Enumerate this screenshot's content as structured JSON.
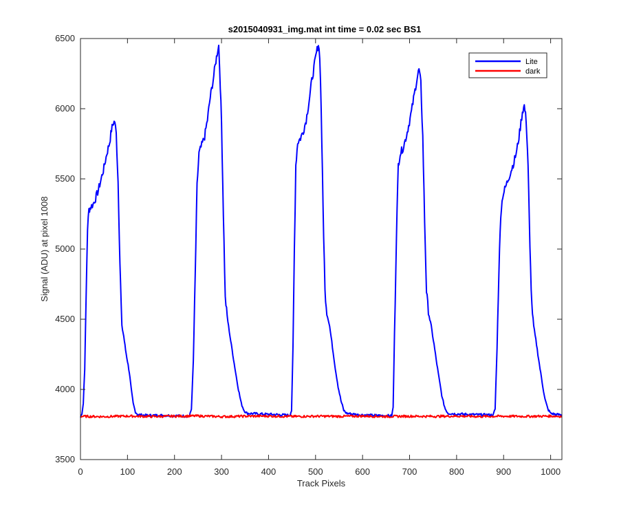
{
  "chart_data": {
    "type": "line",
    "title": "s2015040931_img.mat int time = 0.02 sec   BS1",
    "xlabel": "Track Pixels",
    "ylabel": "Signal (ADU) at pixel 1008",
    "xlim": [
      0,
      1024
    ],
    "ylim": [
      3500,
      6500
    ],
    "xticks": [
      0,
      100,
      200,
      300,
      400,
      500,
      600,
      700,
      800,
      900,
      1000
    ],
    "yticks": [
      3500,
      4000,
      4500,
      5000,
      5500,
      6000,
      6500
    ],
    "grid": false,
    "legend_position": "top-right",
    "series": [
      {
        "name": "Lite",
        "color": "#0000ff",
        "points": [
          [
            0,
            3800
          ],
          [
            3,
            3830
          ],
          [
            6,
            3900
          ],
          [
            9,
            4150
          ],
          [
            12,
            4650
          ],
          [
            15,
            5150
          ],
          [
            18,
            5280
          ],
          [
            22,
            5300
          ],
          [
            27,
            5320
          ],
          [
            32,
            5360
          ],
          [
            38,
            5420
          ],
          [
            44,
            5500
          ],
          [
            50,
            5580
          ],
          [
            56,
            5680
          ],
          [
            62,
            5760
          ],
          [
            66,
            5850
          ],
          [
            70,
            5900
          ],
          [
            73,
            5910
          ],
          [
            76,
            5820
          ],
          [
            80,
            5480
          ],
          [
            84,
            4900
          ],
          [
            88,
            4450
          ],
          [
            92,
            4380
          ],
          [
            96,
            4280
          ],
          [
            100,
            4200
          ],
          [
            104,
            4120
          ],
          [
            108,
            4000
          ],
          [
            112,
            3900
          ],
          [
            117,
            3840
          ],
          [
            122,
            3820
          ],
          [
            140,
            3815
          ],
          [
            180,
            3815
          ],
          [
            220,
            3810
          ],
          [
            232,
            3810
          ],
          [
            236,
            3860
          ],
          [
            240,
            4200
          ],
          [
            244,
            4800
          ],
          [
            248,
            5450
          ],
          [
            252,
            5680
          ],
          [
            258,
            5740
          ],
          [
            264,
            5800
          ],
          [
            270,
            5920
          ],
          [
            276,
            6080
          ],
          [
            282,
            6200
          ],
          [
            288,
            6340
          ],
          [
            292,
            6420
          ],
          [
            294,
            6450
          ],
          [
            296,
            6300
          ],
          [
            300,
            5900
          ],
          [
            304,
            5250
          ],
          [
            308,
            4650
          ],
          [
            312,
            4520
          ],
          [
            318,
            4380
          ],
          [
            324,
            4250
          ],
          [
            330,
            4120
          ],
          [
            336,
            4000
          ],
          [
            342,
            3900
          ],
          [
            348,
            3850
          ],
          [
            354,
            3830
          ],
          [
            380,
            3825
          ],
          [
            420,
            3820
          ],
          [
            445,
            3815
          ],
          [
            449,
            3850
          ],
          [
            452,
            4300
          ],
          [
            455,
            5000
          ],
          [
            458,
            5600
          ],
          [
            462,
            5760
          ],
          [
            468,
            5790
          ],
          [
            474,
            5840
          ],
          [
            480,
            5920
          ],
          [
            486,
            6050
          ],
          [
            492,
            6200
          ],
          [
            498,
            6320
          ],
          [
            502,
            6400
          ],
          [
            506,
            6460
          ],
          [
            509,
            6380
          ],
          [
            512,
            6000
          ],
          [
            516,
            5300
          ],
          [
            520,
            4700
          ],
          [
            524,
            4550
          ],
          [
            530,
            4450
          ],
          [
            536,
            4300
          ],
          [
            542,
            4150
          ],
          [
            548,
            4020
          ],
          [
            554,
            3920
          ],
          [
            560,
            3850
          ],
          [
            566,
            3830
          ],
          [
            590,
            3820
          ],
          [
            620,
            3815
          ],
          [
            662,
            3812
          ],
          [
            665,
            3870
          ],
          [
            668,
            4400
          ],
          [
            672,
            5100
          ],
          [
            676,
            5600
          ],
          [
            680,
            5680
          ],
          [
            686,
            5720
          ],
          [
            692,
            5790
          ],
          [
            698,
            5880
          ],
          [
            704,
            5980
          ],
          [
            710,
            6100
          ],
          [
            716,
            6220
          ],
          [
            720,
            6280
          ],
          [
            724,
            6180
          ],
          [
            728,
            5800
          ],
          [
            732,
            5200
          ],
          [
            736,
            4700
          ],
          [
            740,
            4560
          ],
          [
            746,
            4450
          ],
          [
            752,
            4320
          ],
          [
            758,
            4180
          ],
          [
            764,
            4050
          ],
          [
            770,
            3930
          ],
          [
            776,
            3860
          ],
          [
            782,
            3830
          ],
          [
            800,
            3825
          ],
          [
            840,
            3820
          ],
          [
            878,
            3818
          ],
          [
            882,
            3860
          ],
          [
            886,
            4300
          ],
          [
            890,
            4850
          ],
          [
            894,
            5250
          ],
          [
            898,
            5380
          ],
          [
            904,
            5440
          ],
          [
            910,
            5500
          ],
          [
            916,
            5560
          ],
          [
            922,
            5620
          ],
          [
            928,
            5700
          ],
          [
            934,
            5830
          ],
          [
            940,
            5980
          ],
          [
            944,
            6020
          ],
          [
            948,
            5920
          ],
          [
            952,
            5600
          ],
          [
            956,
            5000
          ],
          [
            960,
            4600
          ],
          [
            964,
            4450
          ],
          [
            970,
            4320
          ],
          [
            976,
            4180
          ],
          [
            982,
            4050
          ],
          [
            988,
            3930
          ],
          [
            994,
            3860
          ],
          [
            1000,
            3830
          ],
          [
            1010,
            3822
          ],
          [
            1024,
            3818
          ]
        ]
      },
      {
        "name": "dark",
        "color": "#ff0000",
        "points": [
          [
            0,
            3808
          ],
          [
            50,
            3806
          ],
          [
            100,
            3810
          ],
          [
            150,
            3807
          ],
          [
            200,
            3809
          ],
          [
            250,
            3811
          ],
          [
            300,
            3806
          ],
          [
            350,
            3809
          ],
          [
            400,
            3810
          ],
          [
            450,
            3807
          ],
          [
            500,
            3809
          ],
          [
            550,
            3808
          ],
          [
            600,
            3810
          ],
          [
            650,
            3807
          ],
          [
            700,
            3809
          ],
          [
            750,
            3808
          ],
          [
            800,
            3810
          ],
          [
            850,
            3807
          ],
          [
            900,
            3809
          ],
          [
            950,
            3808
          ],
          [
            1000,
            3810
          ],
          [
            1024,
            3808
          ]
        ]
      }
    ]
  }
}
